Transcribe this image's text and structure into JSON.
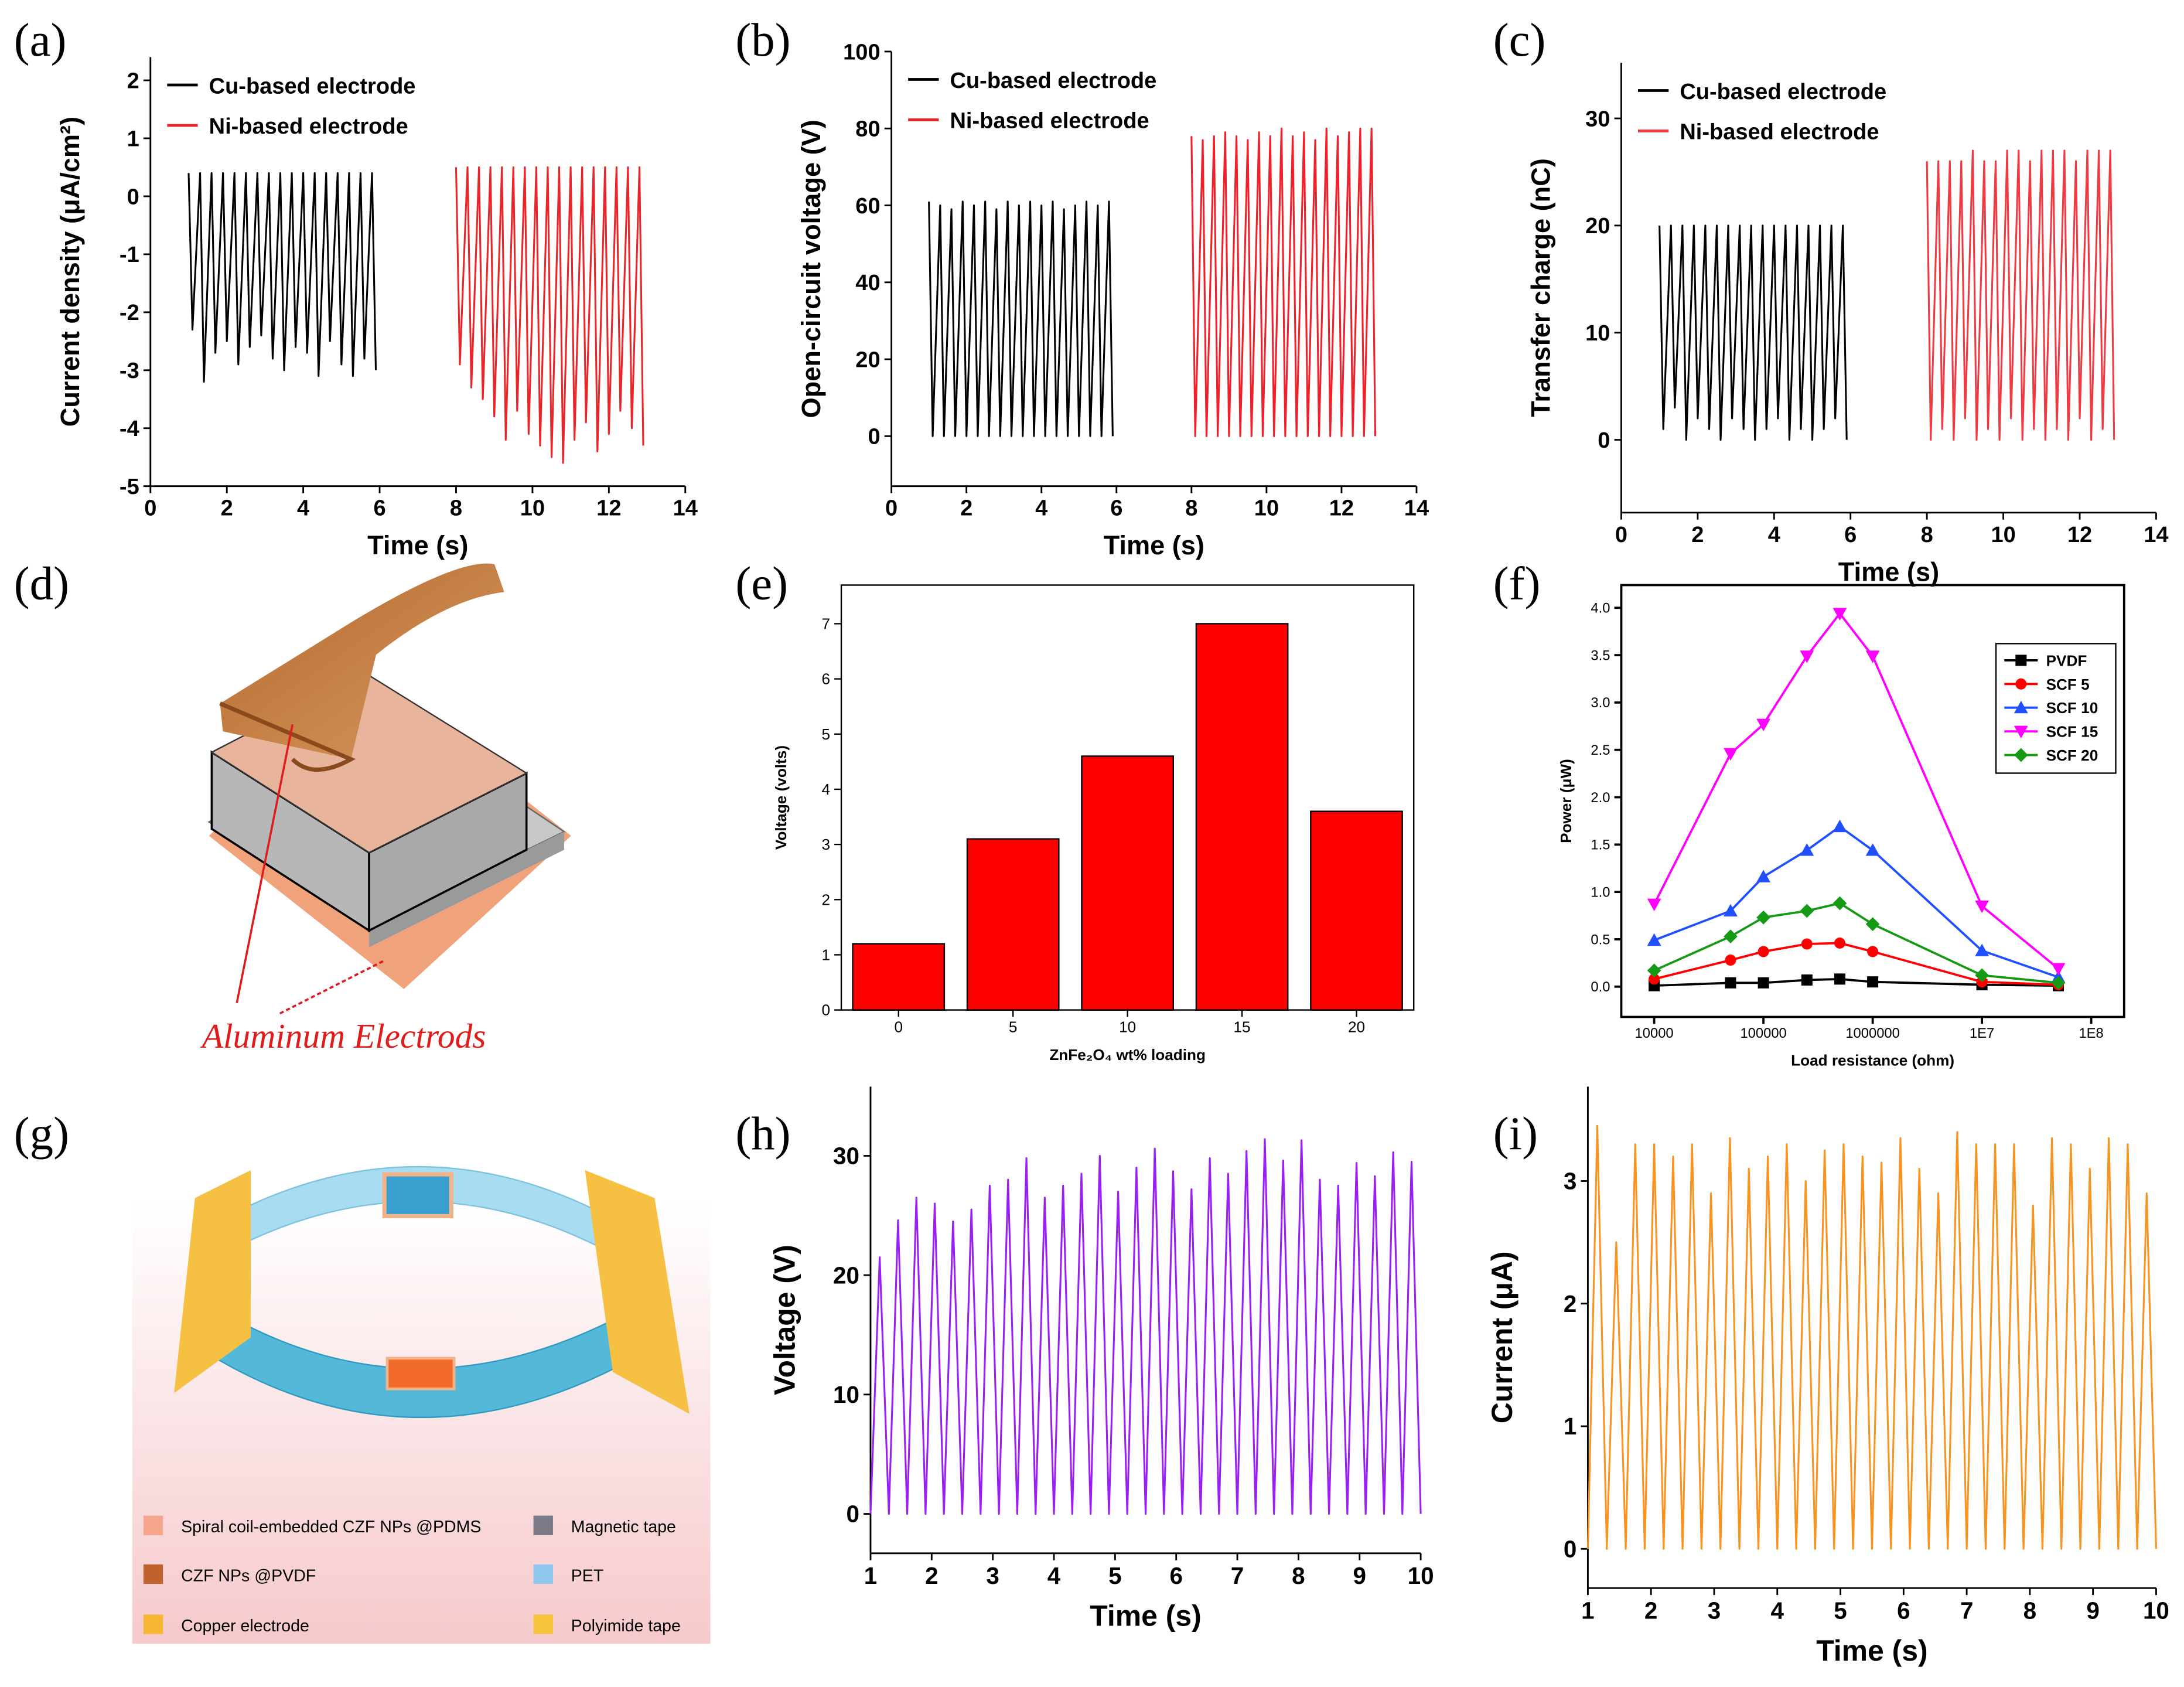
{
  "chart_data": [
    {
      "type": "line",
      "label": "(a)",
      "xlabel": "Time (s)",
      "ylabel": "Current density (μA/cm²)",
      "xlim": [
        0,
        14
      ],
      "ylim": [
        -5,
        2.4
      ],
      "xticks": [
        0,
        2,
        4,
        6,
        8,
        10,
        12,
        14
      ],
      "yticks": [
        -5,
        -4,
        -3,
        -2,
        -1,
        0,
        1,
        2
      ],
      "legend": "upper left",
      "series": [
        {
          "name": "Cu-based electrode",
          "color": "#000000",
          "x": [
            1.0,
            1.1,
            1.3,
            1.4,
            1.6,
            1.7,
            1.9,
            2.0,
            2.2,
            2.3,
            2.5,
            2.6,
            2.8,
            2.9,
            3.1,
            3.2,
            3.4,
            3.5,
            3.7,
            3.8,
            4.0,
            4.1,
            4.3,
            4.4,
            4.6,
            4.7,
            4.9,
            5.0,
            5.2,
            5.3,
            5.5,
            5.6,
            5.8,
            5.9
          ],
          "values": [
            0.4,
            -2.3,
            0.4,
            -3.2,
            0.4,
            -2.7,
            0.4,
            -2.5,
            0.4,
            -2.9,
            0.4,
            -2.6,
            0.4,
            -2.4,
            0.4,
            -2.8,
            0.4,
            -3.0,
            0.4,
            -2.6,
            0.4,
            -2.7,
            0.4,
            -3.1,
            0.4,
            -2.5,
            0.4,
            -2.9,
            0.4,
            -3.1,
            0.4,
            -2.8,
            0.4,
            -3.0
          ]
        },
        {
          "name": "Ni-based electrode",
          "color": "#e8262a",
          "x": [
            8.0,
            8.1,
            8.3,
            8.4,
            8.6,
            8.7,
            8.9,
            9.0,
            9.2,
            9.3,
            9.5,
            9.6,
            9.8,
            9.9,
            10.1,
            10.2,
            10.4,
            10.5,
            10.7,
            10.8,
            11.0,
            11.1,
            11.3,
            11.4,
            11.6,
            11.7,
            11.9,
            12.0,
            12.2,
            12.3,
            12.5,
            12.6,
            12.8,
            12.9
          ],
          "values": [
            0.5,
            -2.9,
            0.5,
            -3.3,
            0.5,
            -3.5,
            0.5,
            -3.8,
            0.5,
            -4.2,
            0.5,
            -3.7,
            0.5,
            -4.1,
            0.5,
            -4.3,
            0.5,
            -4.5,
            0.5,
            -4.6,
            0.5,
            -4.2,
            0.5,
            -3.9,
            0.5,
            -4.4,
            0.5,
            -4.1,
            0.5,
            -3.7,
            0.5,
            -4.0,
            0.5,
            -4.3
          ]
        }
      ]
    },
    {
      "type": "line",
      "label": "(b)",
      "xlabel": "Time (s)",
      "ylabel": "Open-circuit voltage (V)",
      "xlim": [
        0,
        14
      ],
      "ylim": [
        -13,
        100
      ],
      "xticks": [
        0,
        2,
        4,
        6,
        8,
        10,
        12,
        14
      ],
      "yticks": [
        0,
        20,
        40,
        60,
        80,
        100
      ],
      "legend": "upper left",
      "series": [
        {
          "name": "Cu-based electrode",
          "color": "#000000",
          "x": [
            1.0,
            1.1,
            1.3,
            1.4,
            1.6,
            1.7,
            1.9,
            2.0,
            2.2,
            2.3,
            2.5,
            2.6,
            2.8,
            2.9,
            3.1,
            3.2,
            3.4,
            3.5,
            3.7,
            3.8,
            4.0,
            4.1,
            4.3,
            4.4,
            4.6,
            4.7,
            4.9,
            5.0,
            5.2,
            5.3,
            5.5,
            5.6,
            5.8,
            5.9
          ],
          "values": [
            61,
            0,
            60,
            0,
            59,
            0,
            61,
            0,
            60,
            0,
            61,
            0,
            59,
            0,
            61,
            0,
            60,
            0,
            61,
            0,
            60,
            0,
            61,
            0,
            59,
            0,
            60,
            0,
            61,
            0,
            60,
            0,
            61,
            0
          ]
        },
        {
          "name": "Ni-based electrode",
          "color": "#f0202a",
          "x": [
            8.0,
            8.1,
            8.3,
            8.4,
            8.6,
            8.7,
            8.9,
            9.0,
            9.2,
            9.3,
            9.5,
            9.6,
            9.8,
            9.9,
            10.1,
            10.2,
            10.4,
            10.5,
            10.7,
            10.8,
            11.0,
            11.1,
            11.3,
            11.4,
            11.6,
            11.7,
            11.9,
            12.0,
            12.2,
            12.3,
            12.5,
            12.6,
            12.8,
            12.9
          ],
          "values": [
            78,
            0,
            77,
            0,
            78,
            0,
            79,
            0,
            78,
            0,
            77,
            0,
            79,
            0,
            78,
            0,
            80,
            0,
            78,
            0,
            79,
            0,
            77,
            0,
            80,
            0,
            78,
            0,
            79,
            0,
            80,
            0,
            80,
            0
          ]
        }
      ]
    },
    {
      "type": "line",
      "label": "(c)",
      "xlabel": "Time (s)",
      "ylabel": "Transfer charge (nC)",
      "xlim": [
        0,
        14
      ],
      "ylim": [
        -6.8,
        35.2
      ],
      "xticks": [
        0,
        2,
        4,
        6,
        8,
        10,
        12,
        14
      ],
      "yticks": [
        0,
        10,
        20,
        30
      ],
      "legend": "upper left",
      "series": [
        {
          "name": "Cu-based electrode",
          "color": "#000000",
          "x": [
            1.0,
            1.1,
            1.3,
            1.4,
            1.6,
            1.7,
            1.9,
            2.0,
            2.2,
            2.3,
            2.5,
            2.6,
            2.8,
            2.9,
            3.1,
            3.2,
            3.4,
            3.5,
            3.7,
            3.8,
            4.0,
            4.1,
            4.3,
            4.4,
            4.6,
            4.7,
            4.9,
            5.0,
            5.2,
            5.3,
            5.5,
            5.6,
            5.8,
            5.9
          ],
          "values": [
            20,
            1,
            20,
            3,
            20,
            0,
            20,
            2,
            20,
            1,
            20,
            0,
            20,
            2,
            20,
            1,
            20,
            0,
            20,
            1,
            20,
            2,
            20,
            0,
            20,
            1,
            20,
            0,
            20,
            1,
            20,
            2,
            20,
            0
          ]
        },
        {
          "name": "Ni-based electrode",
          "color": "#ee3a40",
          "x": [
            8.0,
            8.1,
            8.3,
            8.4,
            8.6,
            8.7,
            8.9,
            9.0,
            9.2,
            9.3,
            9.5,
            9.6,
            9.8,
            9.9,
            10.1,
            10.2,
            10.4,
            10.5,
            10.7,
            10.8,
            11.0,
            11.1,
            11.3,
            11.4,
            11.6,
            11.7,
            11.9,
            12.0,
            12.2,
            12.3,
            12.5,
            12.6,
            12.8,
            12.9
          ],
          "values": [
            26,
            0,
            26,
            1,
            26,
            0,
            26,
            2,
            27,
            0,
            26,
            1,
            26,
            0,
            27,
            2,
            27,
            0,
            26,
            1,
            27,
            0,
            27,
            1,
            27,
            0,
            26,
            2,
            27,
            0,
            27,
            1,
            27,
            0
          ]
        }
      ]
    },
    {
      "type": "bar",
      "label": "(e)",
      "xlabel": "ZnFe₂O₄ wt% loading",
      "ylabel": "Voltage (volts)",
      "categories": [
        "0",
        "5",
        "10",
        "15",
        "20"
      ],
      "values": [
        1.2,
        3.1,
        4.6,
        7.0,
        3.6
      ],
      "color": "#ff0000",
      "ylim": [
        0,
        7.7
      ],
      "yticks": [
        0,
        1,
        2,
        3,
        4,
        5,
        6,
        7
      ]
    },
    {
      "type": "line",
      "label": "(f)",
      "xlabel": "Load resistance (ohm)",
      "ylabel": "Power (μW)",
      "xscale": "log",
      "xlim": [
        5000,
        200000000
      ],
      "ylim": [
        -0.32,
        4.24
      ],
      "xticks": [
        10000,
        100000,
        1000000,
        {
          "value": 10000000,
          "label": "1E7"
        },
        {
          "value": 100000000,
          "label": "1E8"
        }
      ],
      "yticks": [
        {
          "value": 0,
          "label": "0.0"
        },
        {
          "value": 0.5,
          "label": "0.5"
        },
        {
          "value": 1,
          "label": "1.0"
        },
        {
          "value": 1.5,
          "label": "1.5"
        },
        {
          "value": 2,
          "label": "2.0"
        },
        {
          "value": 2.5,
          "label": "2.5"
        },
        {
          "value": 3,
          "label": "3.0"
        },
        {
          "value": 3.5,
          "label": "3.5"
        },
        {
          "value": 4,
          "label": "4.0"
        }
      ],
      "legend": "upper right",
      "x": [
        10000,
        50000,
        100000,
        250000,
        500000,
        1000000,
        10000000,
        50000000
      ],
      "series": [
        {
          "name": "PVDF",
          "color": "#000000",
          "marker": "square",
          "values": [
            0.01,
            0.04,
            0.04,
            0.07,
            0.08,
            0.05,
            0.02,
            0.01
          ]
        },
        {
          "name": "SCF 5",
          "color": "#ff0000",
          "marker": "circle",
          "values": [
            0.08,
            0.28,
            0.37,
            0.45,
            0.46,
            0.37,
            0.05,
            0.02
          ]
        },
        {
          "name": "SCF 10",
          "color": "#1f4fff",
          "marker": "triangle-up",
          "values": [
            0.49,
            0.8,
            1.16,
            1.44,
            1.69,
            1.44,
            0.38,
            0.1
          ]
        },
        {
          "name": "SCF 15",
          "color": "#ff00ff",
          "marker": "triangle-down",
          "values": [
            0.87,
            2.46,
            2.77,
            3.49,
            3.94,
            3.49,
            0.85,
            0.19
          ]
        },
        {
          "name": "SCF 20",
          "color": "#159a15",
          "marker": "diamond",
          "values": [
            0.17,
            0.53,
            0.73,
            0.8,
            0.88,
            0.66,
            0.12,
            0.04
          ]
        }
      ]
    },
    {
      "type": "line",
      "label": "(h)",
      "xlabel": "Time (s)",
      "ylabel": "Voltage (V)",
      "xlim": [
        1,
        10
      ],
      "ylim": [
        -3.3,
        35.8
      ],
      "xticks": [
        1,
        2,
        3,
        4,
        5,
        6,
        7,
        8,
        9,
        10
      ],
      "yticks": [
        0,
        10,
        20,
        30
      ],
      "series": [
        {
          "color": "#9a1ff2",
          "x": [
            1.0,
            1.15,
            1.3,
            1.45,
            1.6,
            1.75,
            1.9,
            2.05,
            2.2,
            2.35,
            2.5,
            2.65,
            2.8,
            2.95,
            3.1,
            3.25,
            3.4,
            3.55,
            3.7,
            3.85,
            4.0,
            4.15,
            4.3,
            4.45,
            4.6,
            4.75,
            4.9,
            5.05,
            5.2,
            5.35,
            5.5,
            5.65,
            5.8,
            5.95,
            6.1,
            6.25,
            6.4,
            6.55,
            6.7,
            6.85,
            7.0,
            7.15,
            7.3,
            7.45,
            7.6,
            7.75,
            7.9,
            8.05,
            8.2,
            8.35,
            8.5,
            8.65,
            8.8,
            8.95,
            9.1,
            9.25,
            9.4,
            9.55,
            9.7,
            9.85,
            10.0
          ],
          "values": [
            0,
            21.5,
            0,
            24.6,
            0,
            26.5,
            0,
            26,
            0,
            24.5,
            0,
            25.5,
            0,
            27.5,
            0,
            28,
            0,
            29.8,
            0,
            26.5,
            0,
            27.5,
            0,
            28.5,
            0,
            30,
            0,
            27,
            0,
            29,
            0,
            30.6,
            0,
            28.7,
            0,
            27.2,
            0,
            29.8,
            0,
            28.5,
            0,
            30.4,
            0,
            31.4,
            0,
            29.6,
            0,
            31.3,
            0,
            28,
            0,
            27.5,
            0,
            29.4,
            0,
            28.3,
            0,
            30.3,
            0,
            29.5,
            0
          ]
        }
      ]
    },
    {
      "type": "line",
      "label": "(i)",
      "xlabel": "Time (s)",
      "ylabel": "Current (μA)",
      "xlim": [
        1,
        10
      ],
      "ylim": [
        -0.32,
        3.77
      ],
      "xticks": [
        1,
        2,
        3,
        4,
        5,
        6,
        7,
        8,
        9,
        10
      ],
      "yticks": [
        0,
        1,
        2,
        3
      ],
      "series": [
        {
          "color": "#f8931f",
          "x": [
            1.0,
            1.15,
            1.3,
            1.45,
            1.6,
            1.75,
            1.9,
            2.05,
            2.2,
            2.35,
            2.5,
            2.65,
            2.8,
            2.95,
            3.1,
            3.25,
            3.4,
            3.55,
            3.7,
            3.85,
            4.0,
            4.15,
            4.3,
            4.45,
            4.6,
            4.75,
            4.9,
            5.05,
            5.2,
            5.35,
            5.5,
            5.65,
            5.8,
            5.95,
            6.1,
            6.25,
            6.4,
            6.55,
            6.7,
            6.85,
            7.0,
            7.15,
            7.3,
            7.45,
            7.6,
            7.75,
            7.9,
            8.05,
            8.2,
            8.35,
            8.5,
            8.65,
            8.8,
            8.95,
            9.1,
            9.25,
            9.4,
            9.55,
            9.7,
            9.85,
            10.0
          ],
          "values": [
            0,
            3.45,
            0,
            2.5,
            0,
            3.3,
            0,
            3.3,
            0,
            3.2,
            0,
            3.3,
            0,
            2.9,
            0,
            3.35,
            0,
            3.1,
            0,
            3.2,
            0,
            3.3,
            0,
            3.0,
            0,
            3.25,
            0,
            3.3,
            0,
            3.2,
            0,
            3.15,
            0,
            3.35,
            0,
            3.1,
            0,
            2.9,
            0,
            3.4,
            0,
            3.3,
            0,
            3.3,
            0,
            3.3,
            0,
            2.8,
            0,
            3.35,
            0,
            3.3,
            0,
            3.1,
            0,
            3.35,
            0,
            3.3,
            0,
            2.9,
            0
          ]
        }
      ]
    }
  ],
  "diagrams": [
    {
      "label": "(d)",
      "annotation": "Aluminum Electrods"
    },
    {
      "label": "(g)",
      "legend": [
        "Spiral coil-embedded CZF NPs @PDMS",
        "Magnetic tape",
        "CZF NPs @PVDF",
        "PET",
        "Copper electrode",
        "Polyimide tape"
      ]
    }
  ]
}
